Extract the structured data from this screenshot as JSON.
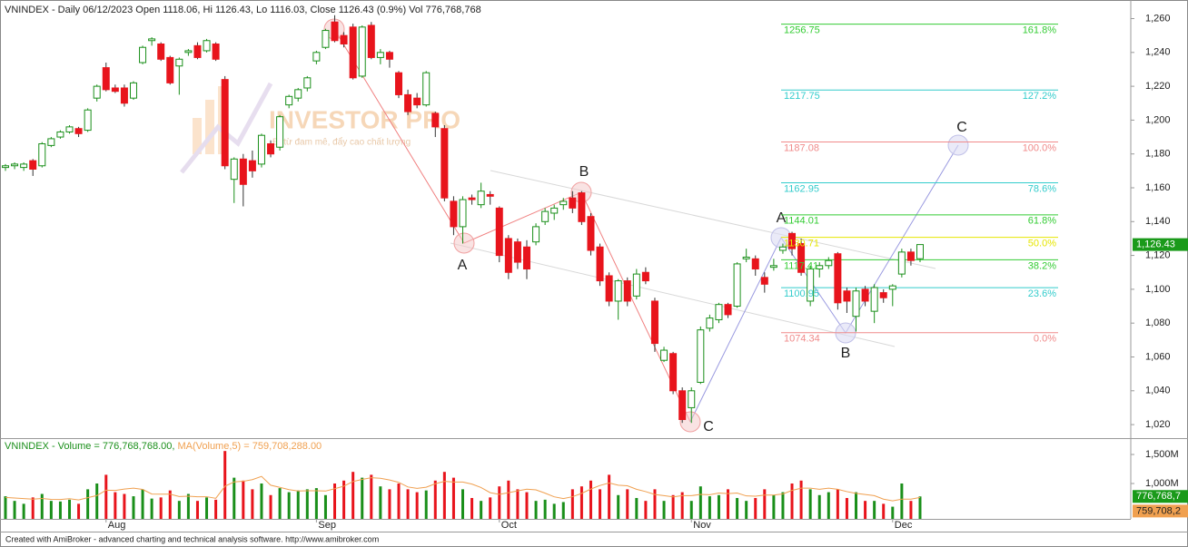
{
  "chart_data": [
    {
      "type": "candlestick",
      "title": "VNINDEX - Daily 06/12/2023 Open 1118.06, Hi 1126.43, Lo 1116.03, Close 1126.43 (0.9%) Vol 776,768,768",
      "categories": [
        null,
        null,
        null,
        null,
        null,
        null,
        null,
        null,
        null,
        null,
        null,
        "Aug",
        null,
        null,
        null,
        null,
        null,
        null,
        null,
        null,
        null,
        null,
        null,
        null,
        null,
        null,
        null,
        null,
        null,
        null,
        null,
        null,
        null,
        null,
        "Sep",
        null,
        null,
        null,
        null,
        null,
        null,
        null,
        null,
        null,
        null,
        null,
        null,
        null,
        null,
        null,
        null,
        null,
        null,
        null,
        "Oct",
        null,
        null,
        null,
        null,
        null,
        null,
        null,
        null,
        null,
        null,
        null,
        null,
        null,
        null,
        null,
        null,
        null,
        null,
        null,
        null,
        "Nov",
        null,
        null,
        null,
        null,
        null,
        null,
        null,
        null,
        null,
        null,
        null,
        null,
        null,
        null,
        null,
        null,
        null,
        null,
        null,
        null,
        null,
        "Dec",
        null,
        null,
        null
      ],
      "open": [
        1172,
        1173,
        1172,
        1176,
        1173,
        1185,
        1190,
        1193,
        1195,
        1194,
        1213,
        1231,
        1219,
        1219,
        1213,
        1234,
        1247,
        1245,
        1237,
        1232,
        1240,
        1244,
        1241,
        1245,
        1224,
        1165,
        1177,
        1176,
        1174,
        1186,
        1184,
        1209,
        1213,
        1219,
        1235,
        1243,
        1258,
        1250,
        1255,
        1226,
        1256,
        1237,
        1240,
        1228,
        1215,
        1213,
        1209,
        1204,
        1195,
        1152,
        1137,
        1154,
        1150,
        1156,
        1148,
        1130,
        1128,
        1125,
        1128,
        1140,
        1145,
        1150,
        1154,
        1157,
        1143,
        1125,
        1108,
        1093,
        1105,
        1096,
        1110,
        1093,
        1058,
        1062,
        1040,
        1030,
        1045,
        1077,
        1082,
        1091,
        1090,
        1118,
        1118,
        1107,
        1113,
        1123,
        1133,
        1127,
        1093,
        1112,
        1114,
        1121,
        1099,
        1084,
        1100,
        1087,
        1098,
        1100,
        1109,
        1122,
        1118.06
      ],
      "high": [
        1174,
        1175,
        1175,
        1177,
        1187,
        1190,
        1194,
        1197,
        1196,
        1207,
        1221,
        1234,
        1221,
        1221,
        1223,
        1244,
        1249,
        1246,
        1238,
        1237,
        1242,
        1246,
        1248,
        1246,
        1226,
        1178,
        1180,
        1182,
        1192,
        1188,
        1203,
        1215,
        1219,
        1226,
        1241,
        1254,
        1262,
        1252,
        1257,
        1256,
        1258,
        1242,
        1241,
        1229,
        1218,
        1216,
        1229,
        1205,
        1197,
        1155,
        1155,
        1156,
        1163,
        1158,
        1149,
        1132,
        1130,
        1129,
        1139,
        1148,
        1150,
        1154,
        1158,
        1158,
        1145,
        1127,
        1110,
        1106,
        1107,
        1112,
        1113,
        1095,
        1066,
        1063,
        1042,
        1042,
        1078,
        1085,
        1092,
        1092,
        1116,
        1124,
        1120,
        1110,
        1118,
        1127,
        1134,
        1130,
        1114,
        1116,
        1119,
        1122,
        1101,
        1101,
        1102,
        1103,
        1100,
        1103,
        1124,
        1124,
        1126.43
      ],
      "low": [
        1170,
        1171,
        1170,
        1167,
        1172,
        1184,
        1189,
        1192,
        1190,
        1193,
        1211,
        1217,
        1216,
        1208,
        1212,
        1233,
        1244,
        1235,
        1221,
        1215,
        1238,
        1236,
        1240,
        1235,
        1171,
        1151,
        1149,
        1166,
        1172,
        1178,
        1182,
        1207,
        1211,
        1217,
        1233,
        1242,
        1246,
        1243,
        1224,
        1225,
        1236,
        1233,
        1231,
        1213,
        1203,
        1207,
        1208,
        1190,
        1152,
        1132,
        1127,
        1150,
        1148,
        1150,
        1116,
        1106,
        1112,
        1106,
        1126,
        1138,
        1141,
        1147,
        1145,
        1138,
        1120,
        1102,
        1090,
        1082,
        1090,
        1094,
        1103,
        1063,
        1057,
        1038,
        1021,
        1021,
        1044,
        1075,
        1080,
        1083,
        1089,
        1116,
        1108,
        1098,
        1111,
        1121,
        1120,
        1108,
        1090,
        1107,
        1112,
        1088,
        1086,
        1075,
        1090,
        1080,
        1092,
        1090,
        1107,
        1114,
        1116.03
      ],
      "close": [
        1173,
        1174,
        1174,
        1171,
        1186,
        1189,
        1193,
        1196,
        1192,
        1206,
        1220,
        1218,
        1217,
        1210,
        1222,
        1243,
        1248,
        1236,
        1222,
        1236,
        1241,
        1237,
        1247,
        1236,
        1173,
        1177,
        1162,
        1170,
        1191,
        1180,
        1202,
        1214,
        1218,
        1225,
        1240,
        1253,
        1247,
        1245,
        1225,
        1255,
        1237,
        1240,
        1236,
        1215,
        1205,
        1209,
        1228,
        1196,
        1154,
        1137,
        1153,
        1153,
        1158,
        1155,
        1120,
        1110,
        1116,
        1112,
        1137,
        1146,
        1148,
        1152,
        1148,
        1140,
        1123,
        1105,
        1093,
        1105,
        1093,
        1109,
        1105,
        1068,
        1064,
        1040,
        1023,
        1040,
        1076,
        1083,
        1091,
        1085,
        1115,
        1119,
        1112,
        1103,
        1114,
        1125,
        1124,
        1110,
        1112,
        1114,
        1117,
        1092,
        1093,
        1099,
        1093,
        1101,
        1095,
        1102,
        1122,
        1117,
        1126.43
      ],
      "up_color": "#1a8f1a",
      "down_color": "#e8141c",
      "ylim": [
        1012,
        1271
      ],
      "yticks": [
        {
          "value": 1020,
          "label": "1,020"
        },
        {
          "value": 1040,
          "label": "1,040"
        },
        {
          "value": 1060,
          "label": "1,060"
        },
        {
          "value": 1080,
          "label": "1,080"
        },
        {
          "value": 1100,
          "label": "1,100"
        },
        {
          "value": 1120,
          "label": "1,120"
        },
        {
          "value": 1140,
          "label": "1,140"
        },
        {
          "value": 1160,
          "label": "1,160"
        },
        {
          "value": 1180,
          "label": "1,180"
        },
        {
          "value": 1200,
          "label": "1,200"
        },
        {
          "value": 1220,
          "label": "1,220"
        },
        {
          "value": 1240,
          "label": "1,240"
        },
        {
          "value": 1260,
          "label": "1,260"
        }
      ],
      "last_price": {
        "value": 1126.43,
        "label": "1,126.43"
      },
      "fib_levels": [
        {
          "price": 1256.75,
          "ratio": "161.8%",
          "color": "#33cc33"
        },
        {
          "price": 1217.75,
          "ratio": "127.2%",
          "color": "#33cccc"
        },
        {
          "price": 1187.08,
          "ratio": "100.0%",
          "color": "#f08a8a"
        },
        {
          "price": 1162.95,
          "ratio": "78.6%",
          "color": "#33cccc"
        },
        {
          "price": 1144.01,
          "ratio": "61.8%",
          "color": "#33cc33"
        },
        {
          "price": 1130.71,
          "ratio": "50.0%",
          "color": "#e6e600"
        },
        {
          "price": 1117.41,
          "ratio": "38.2%",
          "color": "#33cc33"
        },
        {
          "price": 1100.95,
          "ratio": "23.6%",
          "color": "#33cccc"
        },
        {
          "price": 1074.34,
          "ratio": "0.0%",
          "color": "#f08a8a"
        }
      ],
      "wave_labels": [
        "A",
        "B",
        "C",
        "A",
        "B",
        "C"
      ],
      "watermark": "INVESTOR PRO",
      "slogan": "Đi từ đam mê, đẩy cao chất lượng"
    },
    {
      "type": "bar",
      "title": "VNINDEX - Volume = 776,768,768.00,",
      "ma_title": "MA(Volume,5) = 759,708,288.00",
      "values": [
        780000000,
        700000000,
        650000000,
        760000000,
        820000000,
        700000000,
        690000000,
        720000000,
        650000000,
        900000000,
        1000000000,
        1150000000,
        850000000,
        820000000,
        780000000,
        900000000,
        740000000,
        760000000,
        880000000,
        700000000,
        820000000,
        700000000,
        760000000,
        720000000,
        1560000000,
        1100000000,
        1050000000,
        900000000,
        1000000000,
        800000000,
        920000000,
        850000000,
        880000000,
        900000000,
        920000000,
        800000000,
        1000000000,
        1050000000,
        1200000000,
        1100000000,
        1150000000,
        950000000,
        900000000,
        1000000000,
        900000000,
        850000000,
        880000000,
        1050000000,
        1200000000,
        1100000000,
        900000000,
        750000000,
        700000000,
        760000000,
        950000000,
        1050000000,
        900000000,
        850000000,
        700000000,
        720000000,
        650000000,
        680000000,
        900000000,
        950000000,
        1050000000,
        900000000,
        1150000000,
        800000000,
        900000000,
        750000000,
        700000000,
        900000000,
        700000000,
        800000000,
        850000000,
        700000000,
        950000000,
        780000000,
        800000000,
        900000000,
        750000000,
        700000000,
        750000000,
        900000000,
        800000000,
        850000000,
        1000000000,
        1050000000,
        900000000,
        800000000,
        850000000,
        900000000,
        750000000,
        850000000,
        700000000,
        700000000,
        650000000,
        600000000,
        1000000000,
        700000000,
        776768768
      ],
      "ma": {
        "color": "#f0a050",
        "values": [
          760000000,
          750000000,
          740000000,
          730000000,
          742000000,
          726000000,
          724000000,
          738000000,
          716000000,
          756000000,
          792000000,
          884000000,
          880000000,
          904000000,
          920000000,
          898000000,
          818000000,
          816000000,
          816000000,
          776000000,
          780000000,
          772000000,
          772000000,
          744000000,
          952000000,
          1028000000,
          1038000000,
          1066000000,
          1122000000,
          970000000,
          934000000,
          894000000,
          870000000,
          874000000,
          874000000,
          870000000,
          910000000,
          954000000,
          1034000000,
          1070000000,
          1100000000,
          1090000000,
          1060000000,
          1020000000,
          940000000,
          916000000,
          936000000,
          996000000,
          1036000000,
          1026000000,
          1026000000,
          990000000,
          930000000,
          842000000,
          812000000,
          842000000,
          872000000,
          902000000,
          890000000,
          834000000,
          770000000,
          740000000,
          772000000,
          830000000,
          904000000,
          966000000,
          1010000000,
          970000000,
          960000000,
          900000000,
          860000000,
          810000000,
          790000000,
          770000000,
          790000000,
          790000000,
          812000000,
          806000000,
          836000000,
          826000000,
          836000000,
          786000000,
          780000000,
          800000000,
          800000000,
          820000000,
          880000000,
          920000000,
          920000000,
          900000000,
          920000000,
          900000000,
          860000000,
          830000000,
          810000000,
          790000000,
          730000000,
          700000000,
          730000000,
          730000000,
          759708288
        ]
      },
      "ylim": [
        390000000,
        1766000000
      ],
      "yticks": [
        {
          "value": 1000000000,
          "label": "1,000M"
        },
        {
          "value": 1500000000,
          "label": "1,500M"
        }
      ],
      "last_volume": {
        "value": 776768768,
        "label": "776,768,7"
      },
      "last_ma": {
        "value": 759708288,
        "label": "759,708,2"
      }
    }
  ],
  "footer": "Created with AmiBroker - advanced charting and technical analysis software. http://www.amibroker.com"
}
